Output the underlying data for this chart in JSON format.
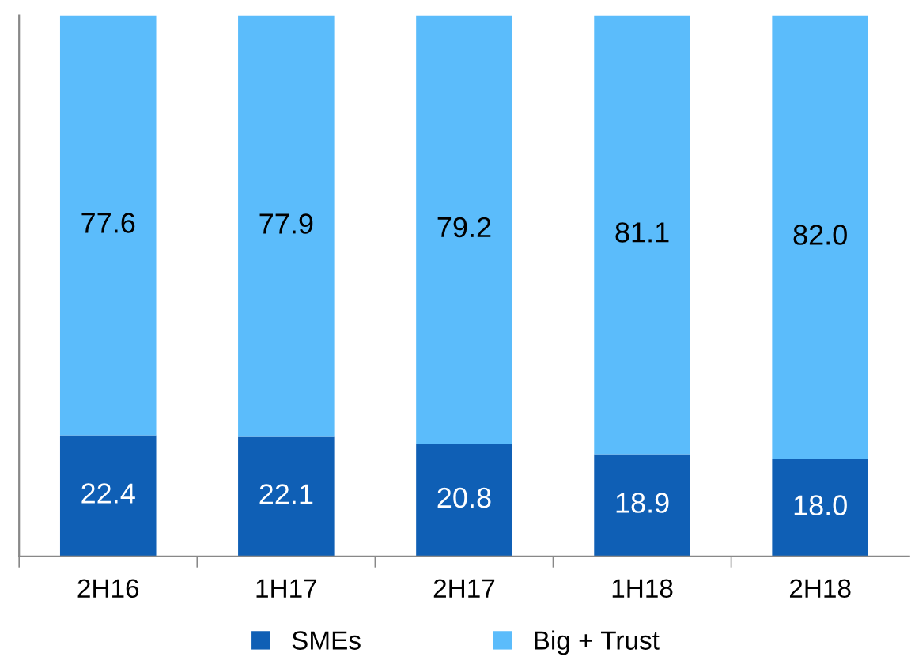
{
  "chart_data": {
    "type": "bar",
    "stacked": true,
    "categories": [
      "2H16",
      "1H17",
      "2H17",
      "1H18",
      "2H18"
    ],
    "series": [
      {
        "name": "SMEs",
        "color": "#0f5fb5",
        "values": [
          22.4,
          22.1,
          20.8,
          18.9,
          18.0
        ],
        "value_labels": [
          "22.4",
          "22.1",
          "20.8",
          "18.9",
          "18.0"
        ]
      },
      {
        "name": "Big + Trust",
        "color": "#5bbcfb",
        "values": [
          77.6,
          77.9,
          79.2,
          81.1,
          82.0
        ],
        "value_labels": [
          "77.6",
          "77.9",
          "79.2",
          "81.1",
          "82.0"
        ]
      }
    ],
    "ylim": [
      0,
      100
    ],
    "legend": "bottom",
    "tick_labels": "x",
    "grid": false
  }
}
